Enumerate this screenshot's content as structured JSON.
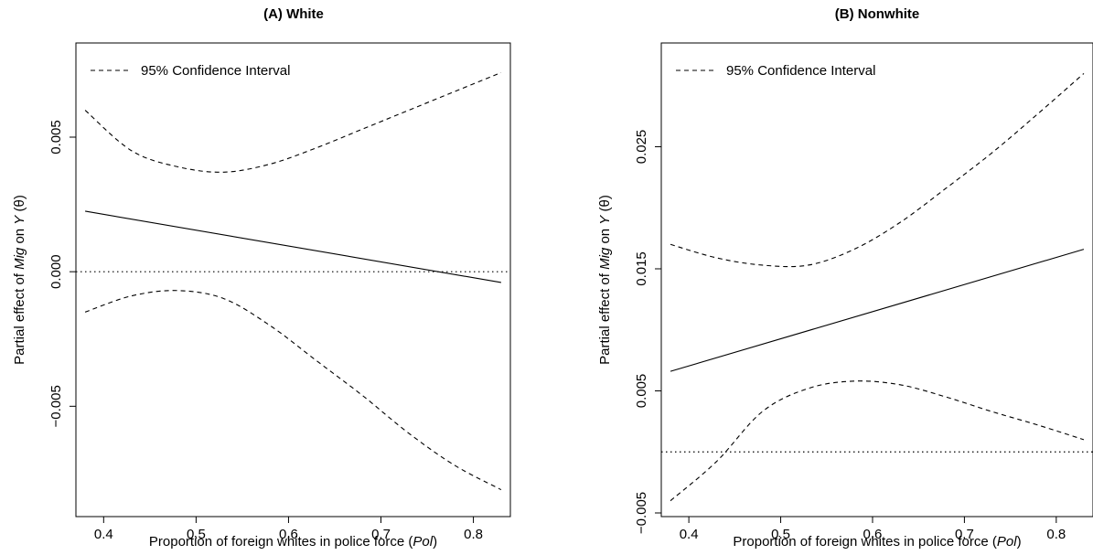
{
  "chart_data": [
    {
      "type": "line",
      "title": "(A) White",
      "xlabel_prefix": "Proportion of foreign whites in police force (",
      "xlabel_var": "Pol",
      "xlabel_suffix": ")",
      "ylabel_prefix": "Partial effect of ",
      "ylabel_var1": "Mig",
      "ylabel_mid": " on ",
      "ylabel_var2": "Y",
      "ylabel_suffix": " (θ)",
      "xlim": [
        0.37,
        0.84
      ],
      "ylim": [
        -0.0091,
        0.0085
      ],
      "xticks": [
        0.4,
        0.5,
        0.6,
        0.7,
        0.8
      ],
      "xtick_labels": [
        "0.4",
        "0.5",
        "0.6",
        "0.7",
        "0.8"
      ],
      "yticks": [
        -0.005,
        0.0,
        0.005
      ],
      "ytick_labels": [
        "−0.005",
        "0.000",
        "0.005"
      ],
      "reference_line_y": 0.0,
      "legend": {
        "label": "95% Confidence Interval",
        "position": "top-left"
      },
      "series": [
        {
          "role": "estimate",
          "style": "solid",
          "x": [
            0.38,
            0.83
          ],
          "y": [
            0.00225,
            -0.0004
          ]
        },
        {
          "role": "upper",
          "style": "dashed",
          "x": [
            0.38,
            0.43,
            0.48,
            0.53,
            0.58,
            0.63,
            0.68,
            0.73,
            0.78,
            0.83
          ],
          "y": [
            0.006,
            0.0045,
            0.0039,
            0.0037,
            0.004,
            0.0046,
            0.0053,
            0.006,
            0.0067,
            0.0074
          ]
        },
        {
          "role": "lower",
          "style": "dashed",
          "x": [
            0.38,
            0.43,
            0.48,
            0.53,
            0.58,
            0.63,
            0.68,
            0.73,
            0.78,
            0.83
          ],
          "y": [
            -0.0015,
            -0.0009,
            -0.0007,
            -0.001,
            -0.002,
            -0.0033,
            -0.0046,
            -0.006,
            -0.0072,
            -0.0081
          ]
        }
      ]
    },
    {
      "type": "line",
      "title": "(B) Nonwhite",
      "xlabel_prefix": "Proportion of foreign whites in police force (",
      "xlabel_var": "Pol",
      "xlabel_suffix": ")",
      "ylabel_prefix": "Partial effect of ",
      "ylabel_var1": "Mig",
      "ylabel_mid": " on ",
      "ylabel_var2": "Y",
      "ylabel_suffix": " (θ)",
      "xlim": [
        0.37,
        0.84
      ],
      "ylim": [
        -0.0053,
        0.0335
      ],
      "xticks": [
        0.4,
        0.5,
        0.6,
        0.7,
        0.8
      ],
      "xtick_labels": [
        "0.4",
        "0.5",
        "0.6",
        "0.7",
        "0.8"
      ],
      "yticks": [
        -0.005,
        0.005,
        0.015,
        0.025
      ],
      "ytick_labels": [
        "−0.005",
        "0.005",
        "0.015",
        "0.025"
      ],
      "reference_line_y": 0.0,
      "legend": {
        "label": "95% Confidence Interval",
        "position": "top-left"
      },
      "series": [
        {
          "role": "estimate",
          "style": "solid",
          "x": [
            0.38,
            0.83
          ],
          "y": [
            0.0066,
            0.0166
          ]
        },
        {
          "role": "upper",
          "style": "dashed",
          "x": [
            0.38,
            0.43,
            0.48,
            0.53,
            0.58,
            0.63,
            0.68,
            0.73,
            0.78,
            0.83
          ],
          "y": [
            0.017,
            0.0159,
            0.0153,
            0.0153,
            0.0166,
            0.0188,
            0.0216,
            0.0245,
            0.0277,
            0.031
          ]
        },
        {
          "role": "lower",
          "style": "dashed",
          "x": [
            0.38,
            0.43,
            0.48,
            0.53,
            0.58,
            0.63,
            0.68,
            0.73,
            0.78,
            0.83
          ],
          "y": [
            -0.004,
            -0.0008,
            0.0033,
            0.0052,
            0.0058,
            0.0055,
            0.0045,
            0.0033,
            0.0022,
            0.001
          ]
        }
      ]
    }
  ]
}
